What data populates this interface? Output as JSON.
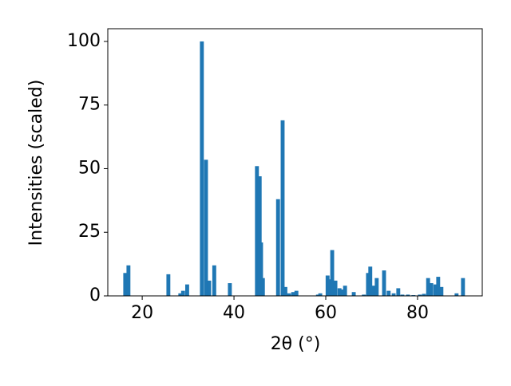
{
  "chart_data": {
    "type": "bar",
    "x_label": "2θ (°)",
    "y_label": "Intensities (scaled)",
    "x": [
      16.3,
      17.0,
      25.7,
      28.3,
      28.9,
      29.8,
      33.0,
      33.9,
      34.6,
      35.7,
      39.1,
      45.0,
      45.6,
      45.9,
      46.3,
      49.6,
      50.6,
      51.2,
      52.0,
      52.9,
      53.6,
      58.3,
      58.8,
      60.4,
      60.9,
      61.4,
      62.1,
      63.0,
      63.5,
      64.2,
      66.1,
      68.3,
      69.2,
      69.7,
      70.3,
      71.1,
      72.7,
      73.7,
      74.8,
      75.8,
      76.7,
      77.9,
      79.1,
      80.5,
      81.4,
      82.3,
      83.0,
      83.9,
      84.5,
      85.2,
      88.5,
      89.9
    ],
    "values": [
      9,
      12,
      8.5,
      1,
      2,
      4.5,
      100,
      53.5,
      6,
      12,
      5,
      51,
      47,
      21,
      7,
      38,
      69,
      3.5,
      1,
      1.5,
      2,
      0.5,
      1,
      8,
      6.5,
      18,
      6,
      3,
      2.5,
      4,
      1.5,
      0.5,
      9,
      11.5,
      4,
      7,
      10,
      2,
      1,
      3,
      0.5,
      0.5,
      0.3,
      0.5,
      0.8,
      7,
      5,
      4.5,
      7.5,
      3.5,
      1,
      7
    ],
    "color": "#1f77b4",
    "xlim": [
      12.5,
      94.1
    ],
    "xticks": [
      20,
      40,
      60,
      80
    ],
    "ylim": [
      0,
      105
    ],
    "yticks": [
      0,
      25,
      50,
      75,
      100
    ],
    "grid": false
  }
}
